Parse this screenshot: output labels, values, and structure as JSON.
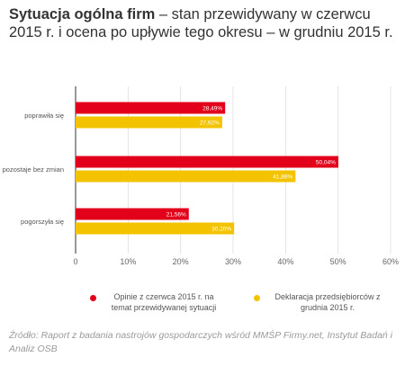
{
  "title": {
    "bold": "Sytuacja ogólna firm",
    "rest": " – stan przewidywany w czerwcu 2015 r. i ocena po upływie tego okresu – w grudniu 2015 r."
  },
  "colors": {
    "red": "#e2001a",
    "yellow": "#f3c300",
    "grid": "#dddddd",
    "axis": "#333333"
  },
  "chart_data": {
    "type": "bar",
    "orientation": "horizontal",
    "categories": [
      "poprawiła się",
      "pozostaje bez zmian",
      "pogorszyła się"
    ],
    "series": [
      {
        "name": "Opinie z czerwca 2015 r. na temat przewidywanej sytuacji",
        "values": [
          28.49,
          50.04,
          21.56
        ],
        "labels": [
          "28,49%",
          "50,04%",
          "21,56%"
        ],
        "color": "#e2001a"
      },
      {
        "name": "Deklaracja przedsiębiorców z grudnia 2015 r.",
        "values": [
          27.92,
          41.88,
          30.2
        ],
        "labels": [
          "27,92%",
          "41,88%",
          "30,20%"
        ],
        "color": "#f3c300"
      }
    ],
    "xlim": [
      0,
      60
    ],
    "xticks": [
      0,
      10,
      20,
      30,
      40,
      50,
      60
    ],
    "xtick_labels": [
      "0",
      "10%",
      "20%",
      "30%",
      "40%",
      "50%",
      "60%"
    ],
    "grid": true
  },
  "legend": [
    {
      "text": "Opinie z czerwca 2015 r. na temat przewidywanej sytuacji",
      "color": "#e2001a"
    },
    {
      "text": "Deklaracja przedsiębiorców z grudnia 2015 r.",
      "color": "#f3c300"
    }
  ],
  "source": "Źródło: Raport z badania nastrojów gospodarczych wśród MMŚP Firmy.net, Instytut Badań i Analiz OSB"
}
